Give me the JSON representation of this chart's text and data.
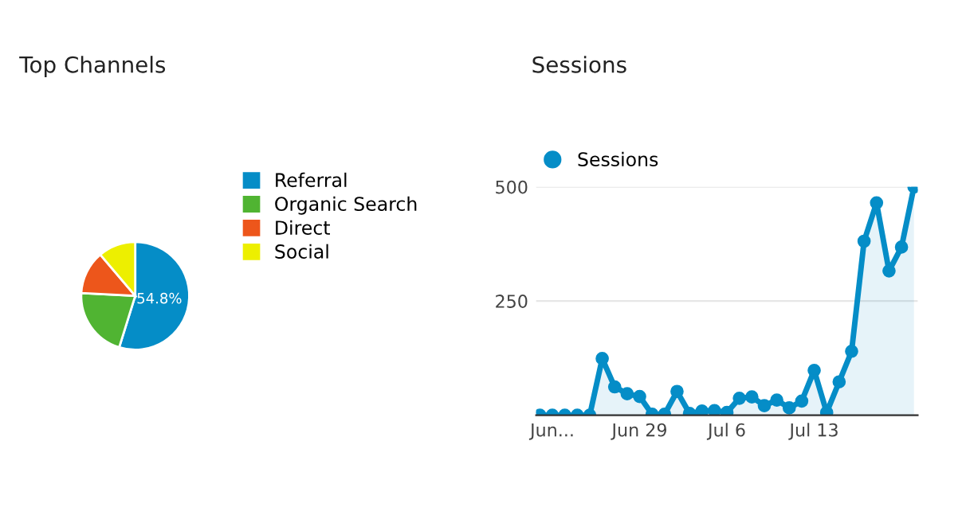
{
  "chart_data": [
    {
      "type": "pie",
      "title": "Top Channels",
      "categories": [
        "Referral",
        "Organic Search",
        "Direct",
        "Social"
      ],
      "values": [
        54.8,
        21.0,
        13.0,
        11.2
      ],
      "colors": [
        "#058dc7",
        "#50b432",
        "#ed561b",
        "#edef00"
      ],
      "value_labels": [
        "54.8%",
        null,
        null,
        null
      ],
      "legend": "right"
    },
    {
      "type": "area",
      "title": "Sessions",
      "categories": [
        null,
        "Jun...",
        null,
        null,
        null,
        null,
        null,
        null,
        "Jun 29",
        null,
        null,
        null,
        null,
        null,
        null,
        "Jul 6",
        null,
        null,
        null,
        null,
        null,
        null,
        "Jul 13",
        null,
        null,
        null,
        null,
        null,
        null,
        null,
        null
      ],
      "series": [
        {
          "name": "Sessions",
          "color": "#058dc7",
          "values": [
            0,
            0,
            0,
            0,
            0,
            124,
            62,
            47,
            41,
            2,
            2,
            52,
            4,
            9,
            10,
            6,
            37,
            40,
            21,
            33,
            16,
            31,
            98,
            6,
            73,
            140,
            381,
            465,
            316,
            368,
            500
          ]
        }
      ],
      "ylim": [
        0,
        500
      ],
      "yticks": [
        {
          "value": 0,
          "label": null
        },
        250,
        500
      ],
      "grid": "y",
      "legend": "top left",
      "marker": "circle"
    }
  ]
}
